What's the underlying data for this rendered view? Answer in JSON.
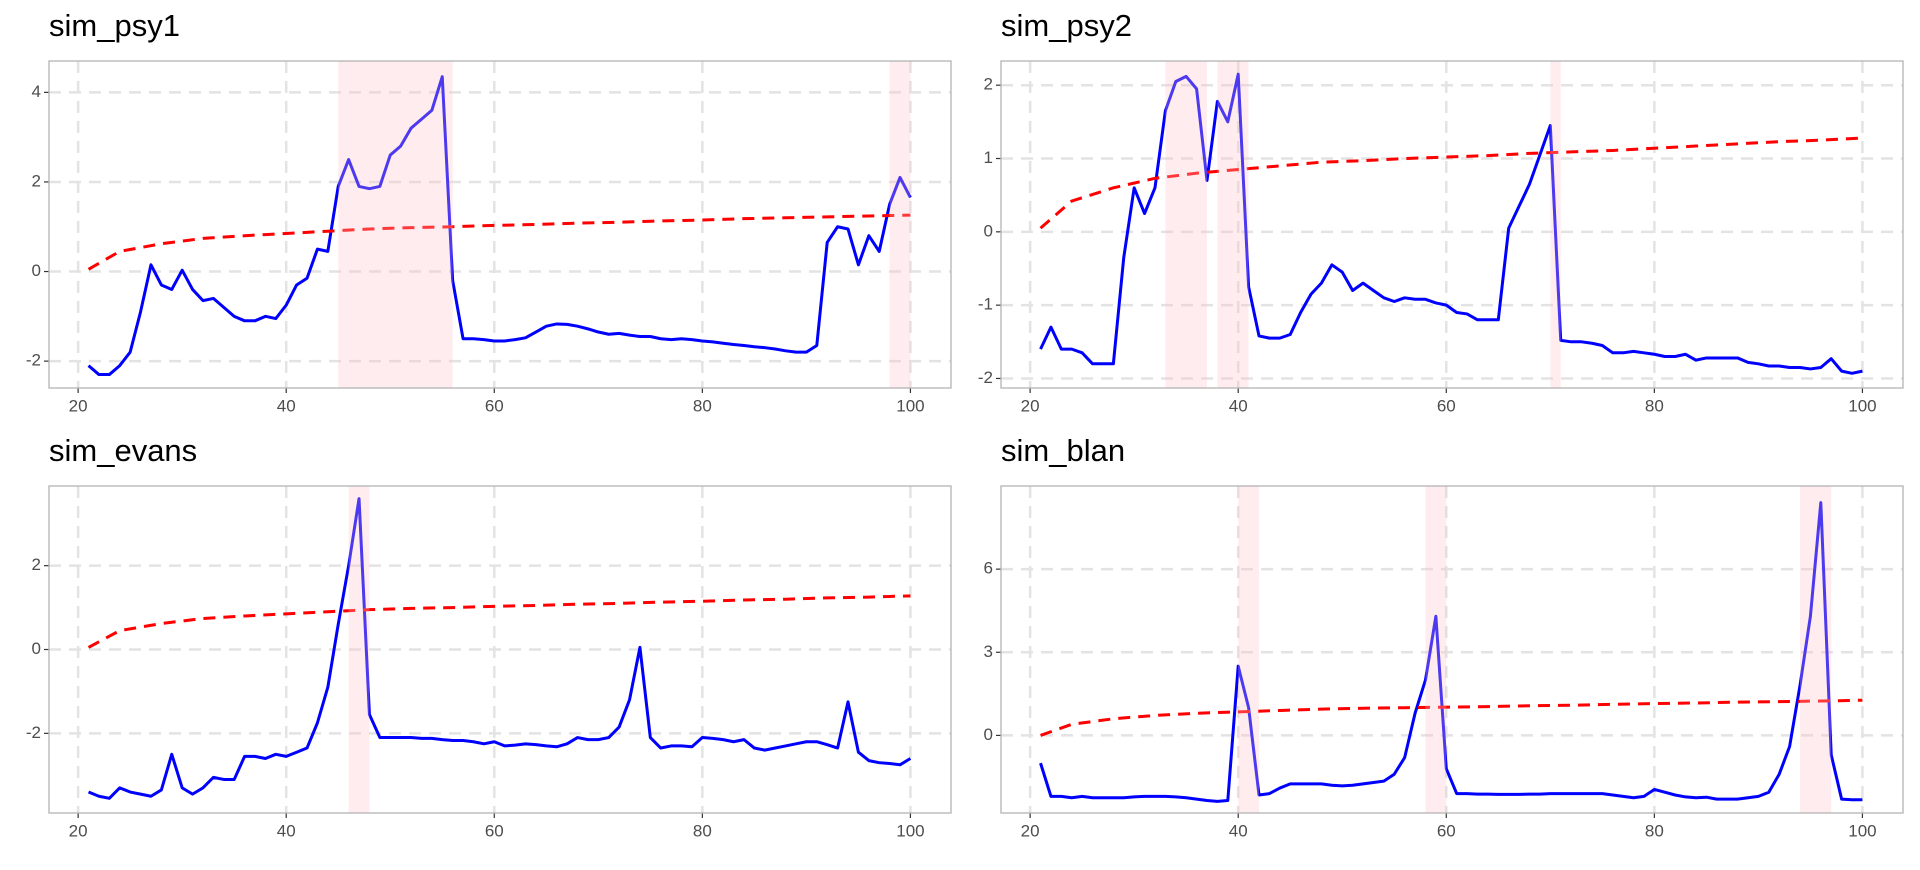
{
  "chart_data": [
    {
      "type": "line",
      "title": "sim_psy1",
      "x": [
        21,
        22,
        23,
        24,
        25,
        26,
        27,
        28,
        29,
        30,
        31,
        32,
        33,
        34,
        35,
        36,
        37,
        38,
        39,
        40,
        41,
        42,
        43,
        44,
        45,
        46,
        47,
        48,
        49,
        50,
        51,
        52,
        53,
        54,
        55,
        56,
        57,
        58,
        59,
        60,
        61,
        62,
        63,
        64,
        65,
        66,
        67,
        68,
        69,
        70,
        71,
        72,
        73,
        74,
        75,
        76,
        77,
        78,
        79,
        80,
        81,
        82,
        83,
        84,
        85,
        86,
        87,
        88,
        89,
        90,
        91,
        92,
        93,
        94,
        95,
        96,
        97,
        98,
        99,
        100
      ],
      "series": [
        {
          "color": "#0000ff",
          "values": [
            -2.1,
            -2.3,
            -2.3,
            -2.1,
            -1.8,
            -0.9,
            0.15,
            -0.3,
            -0.4,
            0.03,
            -0.4,
            -0.65,
            -0.6,
            -0.8,
            -1.0,
            -1.1,
            -1.1,
            -1.0,
            -1.05,
            -0.75,
            -0.3,
            -0.15,
            0.5,
            0.45,
            1.9,
            2.5,
            1.9,
            1.85,
            1.9,
            2.6,
            2.8,
            3.2,
            3.4,
            3.6,
            4.35,
            -0.2,
            -1.5,
            -1.5,
            -1.52,
            -1.55,
            -1.55,
            -1.52,
            -1.48,
            -1.35,
            -1.22,
            -1.17,
            -1.18,
            -1.22,
            -1.28,
            -1.35,
            -1.4,
            -1.38,
            -1.42,
            -1.45,
            -1.45,
            -1.5,
            -1.52,
            -1.5,
            -1.52,
            -1.55,
            -1.57,
            -1.6,
            -1.63,
            -1.65,
            -1.68,
            -1.7,
            -1.73,
            -1.77,
            -1.8,
            -1.8,
            -1.65,
            0.65,
            1.0,
            0.95,
            0.15,
            0.8,
            0.45,
            1.5,
            2.1,
            1.65
          ]
        },
        {
          "color": "#ff0000",
          "dashed": true,
          "x": [
            21,
            24,
            28,
            32,
            36,
            40,
            44,
            48,
            52,
            56,
            60,
            64,
            68,
            72,
            76,
            80,
            84,
            88,
            92,
            96,
            100
          ],
          "values": [
            0.05,
            0.45,
            0.62,
            0.74,
            0.8,
            0.85,
            0.9,
            0.95,
            0.98,
            1.0,
            1.03,
            1.05,
            1.08,
            1.1,
            1.13,
            1.15,
            1.18,
            1.2,
            1.22,
            1.24,
            1.26
          ]
        }
      ],
      "shaded": [
        [
          45,
          56
        ],
        [
          98,
          100
        ]
      ],
      "xlim": [
        17.2,
        103.9
      ],
      "ylim": [
        -2.6,
        4.7
      ],
      "xticks": [
        20,
        40,
        60,
        80,
        100
      ],
      "yticks": [
        -2,
        0,
        2,
        4
      ],
      "grid": true
    },
    {
      "type": "line",
      "title": "sim_psy2",
      "x": [
        21,
        22,
        23,
        24,
        25,
        26,
        27,
        28,
        29,
        30,
        31,
        32,
        33,
        34,
        35,
        36,
        37,
        38,
        39,
        40,
        41,
        42,
        43,
        44,
        45,
        46,
        47,
        48,
        49,
        50,
        51,
        52,
        53,
        54,
        55,
        56,
        57,
        58,
        59,
        60,
        61,
        62,
        63,
        64,
        65,
        66,
        67,
        68,
        69,
        70,
        71,
        72,
        73,
        74,
        75,
        76,
        77,
        78,
        79,
        80,
        81,
        82,
        83,
        84,
        85,
        86,
        87,
        88,
        89,
        90,
        91,
        92,
        93,
        94,
        95,
        96,
        97,
        98,
        99,
        100
      ],
      "series": [
        {
          "color": "#0000ff",
          "values": [
            -1.6,
            -1.3,
            -1.6,
            -1.6,
            -1.65,
            -1.8,
            -1.8,
            -1.8,
            -0.35,
            0.6,
            0.25,
            0.6,
            1.65,
            2.05,
            2.12,
            1.95,
            0.7,
            1.78,
            1.5,
            2.15,
            -0.75,
            -1.42,
            -1.45,
            -1.45,
            -1.4,
            -1.1,
            -0.85,
            -0.7,
            -0.45,
            -0.55,
            -0.8,
            -0.7,
            -0.8,
            -0.9,
            -0.95,
            -0.9,
            -0.92,
            -0.92,
            -0.97,
            -1.0,
            -1.1,
            -1.12,
            -1.2,
            -1.2,
            -1.2,
            0.05,
            0.35,
            0.65,
            1.05,
            1.45,
            -1.48,
            -1.5,
            -1.5,
            -1.52,
            -1.55,
            -1.65,
            -1.65,
            -1.63,
            -1.65,
            -1.67,
            -1.7,
            -1.7,
            -1.67,
            -1.75,
            -1.72,
            -1.72,
            -1.72,
            -1.72,
            -1.78,
            -1.8,
            -1.83,
            -1.83,
            -1.85,
            -1.85,
            -1.87,
            -1.85,
            -1.73,
            -1.9,
            -1.93,
            -1.9
          ]
        },
        {
          "color": "#ff0000",
          "dashed": true,
          "x": [
            21,
            24,
            28,
            32,
            36,
            40,
            44,
            48,
            52,
            56,
            60,
            64,
            68,
            72,
            76,
            80,
            84,
            88,
            92,
            96,
            100
          ],
          "values": [
            0.05,
            0.42,
            0.6,
            0.73,
            0.8,
            0.85,
            0.9,
            0.95,
            0.97,
            1.0,
            1.02,
            1.04,
            1.07,
            1.09,
            1.11,
            1.14,
            1.17,
            1.2,
            1.23,
            1.25,
            1.28
          ]
        }
      ],
      "shaded": [
        [
          33,
          37
        ],
        [
          38,
          41
        ],
        [
          70,
          71
        ]
      ],
      "xlim": [
        17.2,
        103.9
      ],
      "ylim": [
        -2.13,
        2.33
      ],
      "xticks": [
        20,
        40,
        60,
        80,
        100
      ],
      "yticks": [
        -2,
        -1,
        0,
        1,
        2
      ],
      "grid": true
    },
    {
      "type": "line",
      "title": "sim_evans",
      "x": [
        21,
        22,
        23,
        24,
        25,
        26,
        27,
        28,
        29,
        30,
        31,
        32,
        33,
        34,
        35,
        36,
        37,
        38,
        39,
        40,
        41,
        42,
        43,
        44,
        45,
        46,
        47,
        48,
        49,
        50,
        51,
        52,
        53,
        54,
        55,
        56,
        57,
        58,
        59,
        60,
        61,
        62,
        63,
        64,
        65,
        66,
        67,
        68,
        69,
        70,
        71,
        72,
        73,
        74,
        75,
        76,
        77,
        78,
        79,
        80,
        81,
        82,
        83,
        84,
        85,
        86,
        87,
        88,
        89,
        90,
        91,
        92,
        93,
        94,
        95,
        96,
        97,
        98,
        99,
        100
      ],
      "series": [
        {
          "color": "#0000ff",
          "values": [
            -3.4,
            -3.5,
            -3.55,
            -3.3,
            -3.4,
            -3.45,
            -3.5,
            -3.35,
            -2.5,
            -3.3,
            -3.45,
            -3.3,
            -3.05,
            -3.1,
            -3.1,
            -2.55,
            -2.55,
            -2.6,
            -2.5,
            -2.55,
            -2.45,
            -2.35,
            -1.75,
            -0.9,
            0.6,
            2.0,
            3.6,
            -1.55,
            -2.1,
            -2.1,
            -2.1,
            -2.1,
            -2.12,
            -2.12,
            -2.15,
            -2.17,
            -2.17,
            -2.2,
            -2.25,
            -2.2,
            -2.3,
            -2.28,
            -2.25,
            -2.27,
            -2.3,
            -2.32,
            -2.25,
            -2.1,
            -2.15,
            -2.15,
            -2.1,
            -1.85,
            -1.2,
            0.05,
            -2.1,
            -2.35,
            -2.3,
            -2.3,
            -2.32,
            -2.1,
            -2.12,
            -2.15,
            -2.2,
            -2.15,
            -2.35,
            -2.4,
            -2.35,
            -2.3,
            -2.25,
            -2.2,
            -2.2,
            -2.27,
            -2.35,
            -1.25,
            -2.45,
            -2.65,
            -2.7,
            -2.72,
            -2.75,
            -2.6
          ]
        },
        {
          "color": "#ff0000",
          "dashed": true,
          "x": [
            21,
            24,
            28,
            32,
            36,
            40,
            44,
            48,
            52,
            56,
            60,
            64,
            68,
            72,
            76,
            80,
            84,
            88,
            92,
            96,
            100
          ],
          "values": [
            0.05,
            0.45,
            0.62,
            0.74,
            0.8,
            0.85,
            0.9,
            0.95,
            0.98,
            1.0,
            1.03,
            1.05,
            1.08,
            1.1,
            1.13,
            1.15,
            1.18,
            1.2,
            1.23,
            1.25,
            1.28
          ]
        }
      ],
      "shaded": [
        [
          46,
          48
        ]
      ],
      "xlim": [
        17.2,
        103.9
      ],
      "ylim": [
        -3.9,
        3.9
      ],
      "xticks": [
        20,
        40,
        60,
        80,
        100
      ],
      "yticks": [
        -2,
        0,
        2
      ],
      "grid": true
    },
    {
      "type": "line",
      "title": "sim_blan",
      "x": [
        21,
        22,
        23,
        24,
        25,
        26,
        27,
        28,
        29,
        30,
        31,
        32,
        33,
        34,
        35,
        36,
        37,
        38,
        39,
        40,
        41,
        42,
        43,
        44,
        45,
        46,
        47,
        48,
        49,
        50,
        51,
        52,
        53,
        54,
        55,
        56,
        57,
        58,
        59,
        60,
        61,
        62,
        63,
        64,
        65,
        66,
        67,
        68,
        69,
        70,
        71,
        72,
        73,
        74,
        75,
        76,
        77,
        78,
        79,
        80,
        81,
        82,
        83,
        84,
        85,
        86,
        87,
        88,
        89,
        90,
        91,
        92,
        93,
        94,
        95,
        96,
        97,
        98,
        99,
        100
      ],
      "series": [
        {
          "color": "#0000ff",
          "values": [
            -1.0,
            -2.2,
            -2.2,
            -2.25,
            -2.2,
            -2.25,
            -2.25,
            -2.25,
            -2.25,
            -2.22,
            -2.2,
            -2.2,
            -2.2,
            -2.22,
            -2.25,
            -2.3,
            -2.35,
            -2.38,
            -2.35,
            2.5,
            1.0,
            -2.15,
            -2.1,
            -1.9,
            -1.75,
            -1.75,
            -1.75,
            -1.75,
            -1.8,
            -1.82,
            -1.8,
            -1.75,
            -1.7,
            -1.65,
            -1.4,
            -0.8,
            0.8,
            2.0,
            4.3,
            -1.2,
            -2.1,
            -2.1,
            -2.12,
            -2.12,
            -2.13,
            -2.13,
            -2.13,
            -2.12,
            -2.12,
            -2.1,
            -2.1,
            -2.1,
            -2.1,
            -2.1,
            -2.1,
            -2.15,
            -2.2,
            -2.25,
            -2.2,
            -1.95,
            -2.05,
            -2.15,
            -2.22,
            -2.25,
            -2.23,
            -2.3,
            -2.3,
            -2.3,
            -2.25,
            -2.2,
            -2.05,
            -1.4,
            -0.4,
            1.8,
            4.3,
            8.4,
            -0.7,
            -2.3,
            -2.32,
            -2.32
          ]
        },
        {
          "color": "#ff0000",
          "dashed": true,
          "x": [
            21,
            24,
            28,
            32,
            36,
            40,
            44,
            48,
            52,
            56,
            60,
            64,
            68,
            72,
            76,
            80,
            84,
            88,
            92,
            96,
            100
          ],
          "values": [
            0.0,
            0.4,
            0.6,
            0.72,
            0.8,
            0.85,
            0.9,
            0.95,
            0.98,
            1.0,
            1.02,
            1.04,
            1.07,
            1.09,
            1.12,
            1.15,
            1.17,
            1.2,
            1.22,
            1.24,
            1.27
          ]
        }
      ],
      "shaded": [
        [
          40,
          42
        ],
        [
          58,
          60
        ],
        [
          94,
          97
        ]
      ],
      "xlim": [
        17.2,
        103.9
      ],
      "ylim": [
        -2.8,
        9.0
      ],
      "xticks": [
        20,
        40,
        60,
        80,
        100
      ],
      "yticks": [
        0,
        3,
        6
      ],
      "grid": true
    }
  ]
}
